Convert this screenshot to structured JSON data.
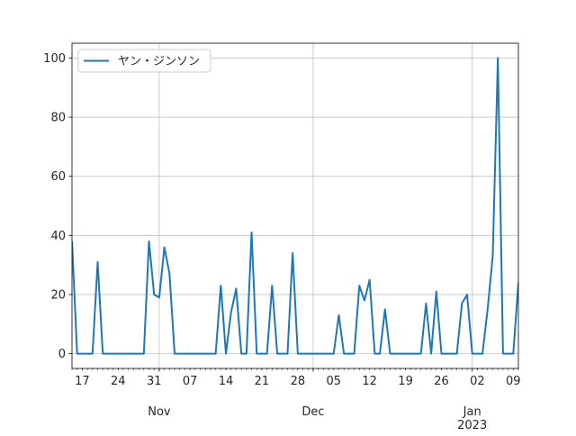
{
  "chart_data": {
    "type": "line",
    "title": "",
    "xlabel": "",
    "ylabel": "",
    "x_start": "2022-10-15",
    "x_end": "2023-01-10",
    "ylim": [
      -5,
      105
    ],
    "y_ticks": [
      0,
      20,
      40,
      60,
      80,
      100
    ],
    "x_minor_ticks": [
      {
        "date": "2022-10-17",
        "label": "17"
      },
      {
        "date": "2022-10-24",
        "label": "24"
      },
      {
        "date": "2022-10-31",
        "label": "31"
      },
      {
        "date": "2022-11-07",
        "label": "07"
      },
      {
        "date": "2022-11-14",
        "label": "14"
      },
      {
        "date": "2022-11-21",
        "label": "21"
      },
      {
        "date": "2022-11-28",
        "label": "28"
      },
      {
        "date": "2022-12-05",
        "label": "05"
      },
      {
        "date": "2022-12-12",
        "label": "12"
      },
      {
        "date": "2022-12-19",
        "label": "19"
      },
      {
        "date": "2022-12-26",
        "label": "26"
      },
      {
        "date": "2023-01-02",
        "label": "02"
      },
      {
        "date": "2023-01-09",
        "label": "09"
      }
    ],
    "x_major_ticks": [
      {
        "date": "2022-11-01",
        "label": "Nov",
        "sublabel": ""
      },
      {
        "date": "2022-12-01",
        "label": "Dec",
        "sublabel": ""
      },
      {
        "date": "2023-01-01",
        "label": "Jan",
        "sublabel": "2023"
      }
    ],
    "grid": true,
    "legend_position": "top-left",
    "series": [
      {
        "name": "ヤン・ジンソン",
        "color": "#1f77b4",
        "points": [
          [
            "2022-10-15",
            38
          ],
          [
            "2022-10-16",
            0
          ],
          [
            "2022-10-17",
            0
          ],
          [
            "2022-10-18",
            0
          ],
          [
            "2022-10-19",
            0
          ],
          [
            "2022-10-20",
            31
          ],
          [
            "2022-10-21",
            0
          ],
          [
            "2022-10-22",
            0
          ],
          [
            "2022-10-23",
            0
          ],
          [
            "2022-10-24",
            0
          ],
          [
            "2022-10-25",
            0
          ],
          [
            "2022-10-26",
            0
          ],
          [
            "2022-10-27",
            0
          ],
          [
            "2022-10-28",
            0
          ],
          [
            "2022-10-29",
            0
          ],
          [
            "2022-10-30",
            38
          ],
          [
            "2022-10-31",
            20
          ],
          [
            "2022-11-01",
            19
          ],
          [
            "2022-11-02",
            36
          ],
          [
            "2022-11-03",
            27
          ],
          [
            "2022-11-04",
            0
          ],
          [
            "2022-11-05",
            0
          ],
          [
            "2022-11-06",
            0
          ],
          [
            "2022-11-07",
            0
          ],
          [
            "2022-11-08",
            0
          ],
          [
            "2022-11-09",
            0
          ],
          [
            "2022-11-10",
            0
          ],
          [
            "2022-11-11",
            0
          ],
          [
            "2022-11-12",
            0
          ],
          [
            "2022-11-13",
            23
          ],
          [
            "2022-11-14",
            0
          ],
          [
            "2022-11-15",
            14
          ],
          [
            "2022-11-16",
            22
          ],
          [
            "2022-11-17",
            0
          ],
          [
            "2022-11-18",
            0
          ],
          [
            "2022-11-19",
            41
          ],
          [
            "2022-11-20",
            0
          ],
          [
            "2022-11-21",
            0
          ],
          [
            "2022-11-22",
            0
          ],
          [
            "2022-11-23",
            23
          ],
          [
            "2022-11-24",
            0
          ],
          [
            "2022-11-25",
            0
          ],
          [
            "2022-11-26",
            0
          ],
          [
            "2022-11-27",
            34
          ],
          [
            "2022-11-28",
            0
          ],
          [
            "2022-11-29",
            0
          ],
          [
            "2022-11-30",
            0
          ],
          [
            "2022-12-01",
            0
          ],
          [
            "2022-12-02",
            0
          ],
          [
            "2022-12-03",
            0
          ],
          [
            "2022-12-04",
            0
          ],
          [
            "2022-12-05",
            0
          ],
          [
            "2022-12-06",
            13
          ],
          [
            "2022-12-07",
            0
          ],
          [
            "2022-12-08",
            0
          ],
          [
            "2022-12-09",
            0
          ],
          [
            "2022-12-10",
            23
          ],
          [
            "2022-12-11",
            18
          ],
          [
            "2022-12-12",
            25
          ],
          [
            "2022-12-13",
            0
          ],
          [
            "2022-12-14",
            0
          ],
          [
            "2022-12-15",
            15
          ],
          [
            "2022-12-16",
            0
          ],
          [
            "2022-12-17",
            0
          ],
          [
            "2022-12-18",
            0
          ],
          [
            "2022-12-19",
            0
          ],
          [
            "2022-12-20",
            0
          ],
          [
            "2022-12-21",
            0
          ],
          [
            "2022-12-22",
            0
          ],
          [
            "2022-12-23",
            17
          ],
          [
            "2022-12-24",
            0
          ],
          [
            "2022-12-25",
            21
          ],
          [
            "2022-12-26",
            0
          ],
          [
            "2022-12-27",
            0
          ],
          [
            "2022-12-28",
            0
          ],
          [
            "2022-12-29",
            0
          ],
          [
            "2022-12-30",
            17
          ],
          [
            "2022-12-31",
            20
          ],
          [
            "2023-01-01",
            0
          ],
          [
            "2023-01-02",
            0
          ],
          [
            "2023-01-03",
            0
          ],
          [
            "2023-01-04",
            15
          ],
          [
            "2023-01-05",
            33
          ],
          [
            "2023-01-06",
            100
          ],
          [
            "2023-01-07",
            0
          ],
          [
            "2023-01-08",
            0
          ],
          [
            "2023-01-09",
            0
          ],
          [
            "2023-01-10",
            24
          ],
          [
            "2023-01-11",
            0
          ]
        ]
      }
    ]
  }
}
